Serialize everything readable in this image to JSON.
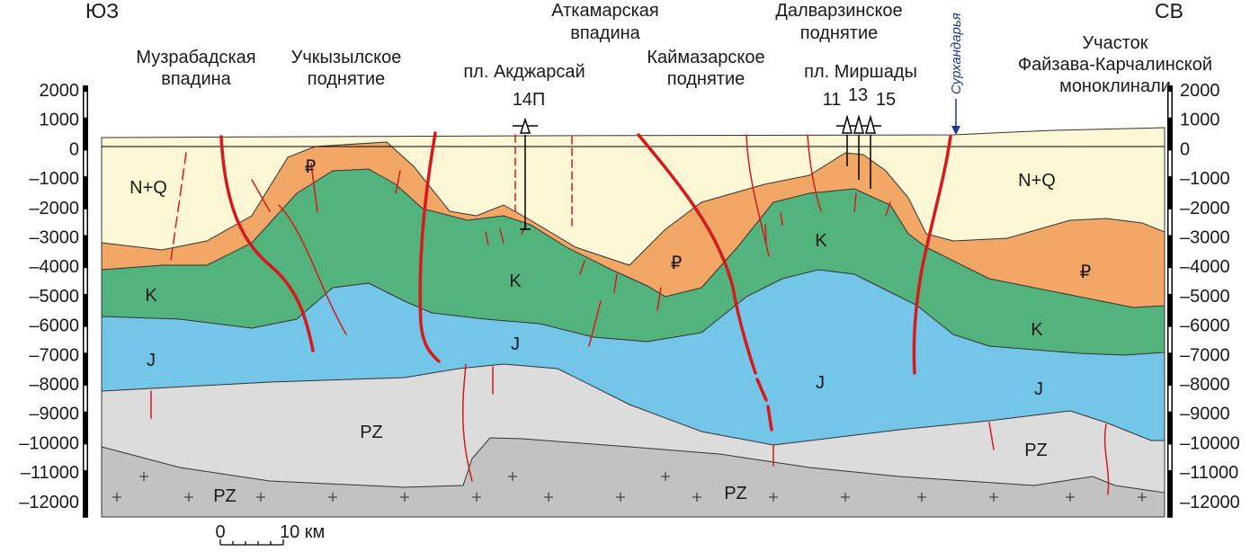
{
  "header": {
    "left_direction": "ЮЗ",
    "right_direction": "СВ"
  },
  "depth_ticks": [
    "2000",
    "1000",
    "0",
    "–1000",
    "–2000",
    "–3000",
    "–4000",
    "–5000",
    "–6000",
    "–7000",
    "–8000",
    "–9000",
    "–10000",
    "–11000",
    "–12000"
  ],
  "structures": [
    {
      "lines": [
        "Музрабадская",
        "впадина"
      ]
    },
    {
      "lines": [
        "Учкызылское",
        "поднятие"
      ]
    },
    {
      "lines": [
        "Аткамарская",
        "впадина"
      ]
    },
    {
      "lines": [
        "Каймазарское",
        "поднятие"
      ]
    },
    {
      "lines": [
        "Далварзинское",
        "поднятие"
      ]
    },
    {
      "lines": [
        "Участок",
        "Файзава-Карчалинской",
        "моноклинали"
      ]
    }
  ],
  "areas": [
    "пл. Акджарсай",
    "пл. Миршады"
  ],
  "wells": [
    "14П",
    "11",
    "13",
    "15"
  ],
  "river": "Сурхандарья",
  "layers": [
    "N+Q",
    "₽",
    "K",
    "J",
    "PZ",
    "PZ",
    "K",
    "J",
    "₽",
    "K",
    "J",
    "N+Q",
    "₽",
    "K",
    "J",
    "PZ",
    "PZ"
  ],
  "scale": {
    "start": "0",
    "end": "10 км"
  }
}
